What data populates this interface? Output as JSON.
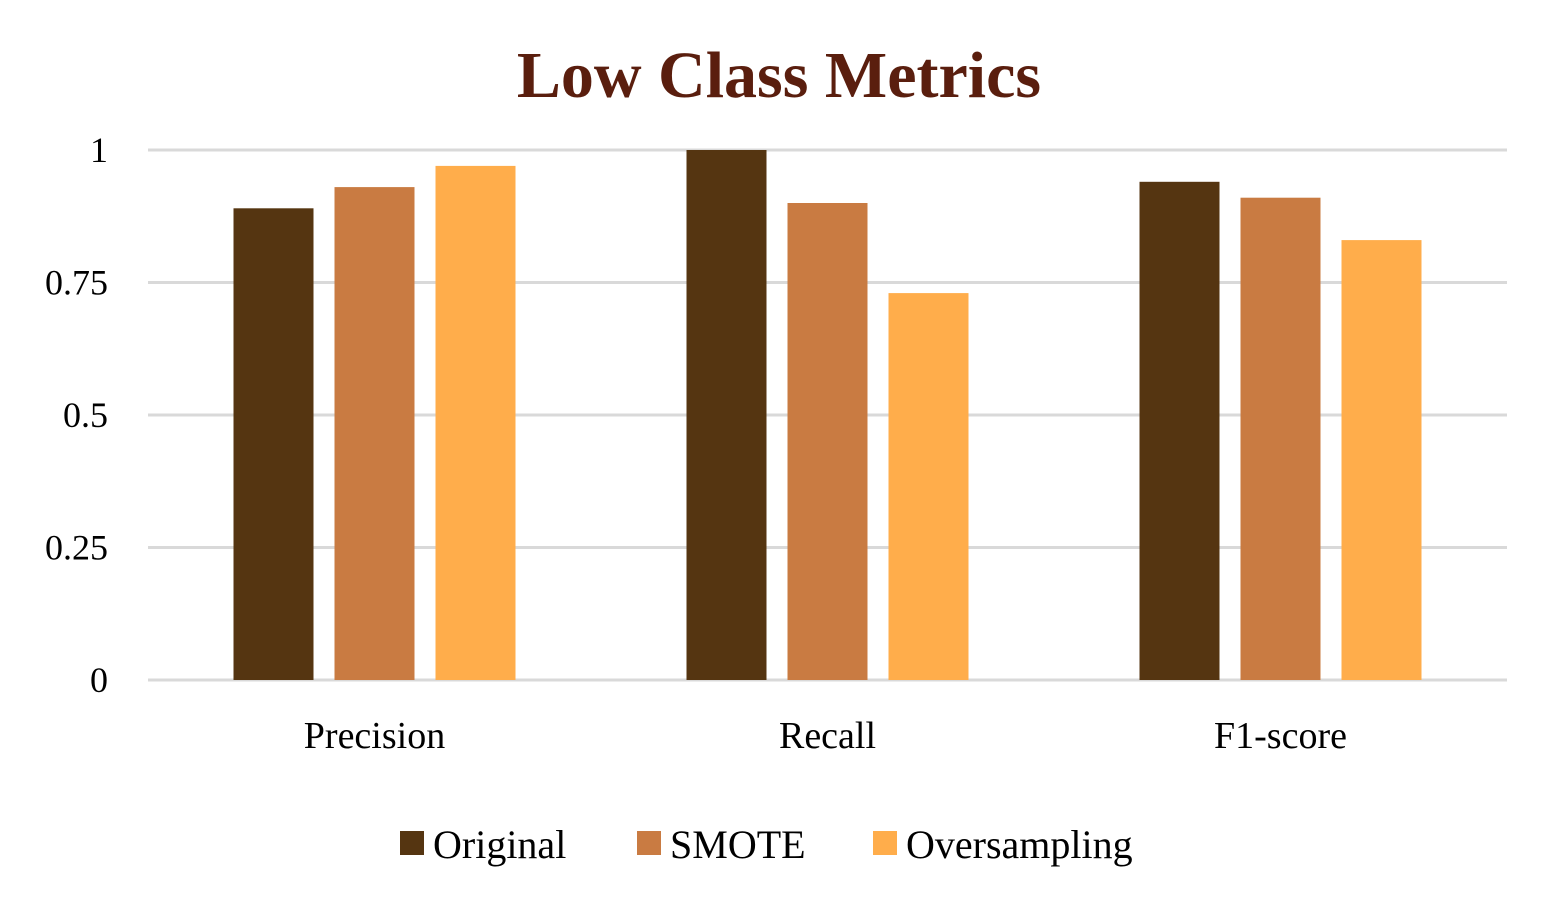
{
  "chart_data": {
    "type": "bar",
    "title": "Low Class Metrics",
    "title_color": "#5a1e0e",
    "xlabel": "",
    "ylabel": "",
    "categories": [
      "Precision",
      "Recall",
      "F1-score"
    ],
    "series": [
      {
        "name": "Original",
        "color": "#553511",
        "values": [
          0.89,
          1.0,
          0.94
        ]
      },
      {
        "name": "SMOTE",
        "color": "#c97b42",
        "values": [
          0.93,
          0.9,
          0.91
        ]
      },
      {
        "name": "Oversampling",
        "color": "#ffad4b",
        "values": [
          0.97,
          0.73,
          0.83
        ]
      }
    ],
    "ylim": [
      0,
      1
    ],
    "yticks": [
      0,
      0.25,
      0.5,
      0.75,
      1
    ],
    "ytick_labels": [
      "0",
      "0.25",
      "0.5",
      "0.75",
      "1"
    ],
    "grid": true,
    "legend_position": "bottom"
  }
}
